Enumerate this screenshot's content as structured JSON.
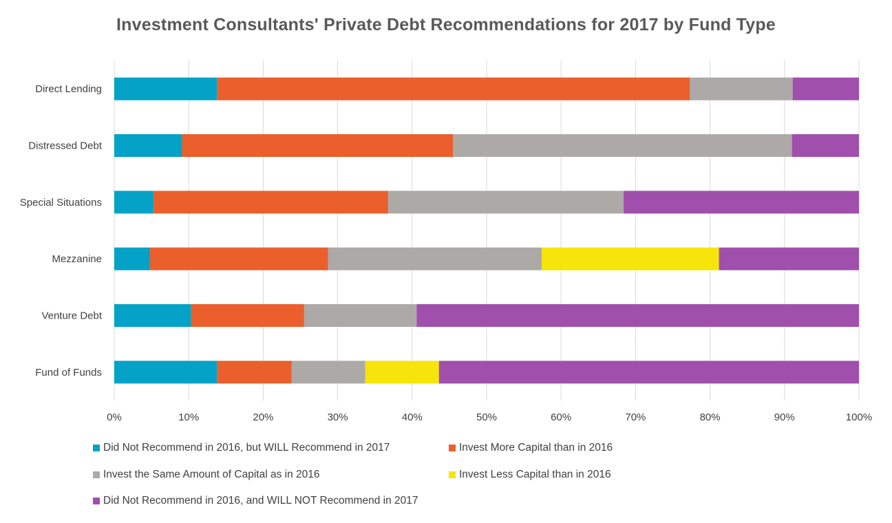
{
  "chart_data": {
    "type": "bar",
    "orientation": "horizontal",
    "stacked": "percent",
    "title": "Investment Consultants' Private Debt Recommendations for 2017 by Fund Type",
    "categories": [
      "Direct Lending",
      "Distressed Debt",
      "Special Situations",
      "Mezzanine",
      "Venture Debt",
      "Fund of Funds"
    ],
    "series": [
      {
        "name": "Did Not Recommend in 2016, but WILL Recommend in 2017",
        "color": "#03A2C6",
        "values": [
          13.8,
          9.1,
          5.3,
          4.8,
          10.3,
          13.8
        ]
      },
      {
        "name": "Invest More Capital than in 2016",
        "color": "#EA5F2B",
        "values": [
          63.5,
          36.4,
          31.5,
          23.9,
          15.2,
          10.0
        ]
      },
      {
        "name": "Invest the Same Amount of Capital as in 2016",
        "color": "#ADA9A7",
        "values": [
          13.8,
          45.5,
          31.6,
          28.7,
          15.1,
          9.9
        ]
      },
      {
        "name": "Invest Less Capital than in 2016",
        "color": "#F6E40A",
        "values": [
          0,
          0,
          0,
          23.8,
          0,
          9.9
        ]
      },
      {
        "name": "Did Not Recommend in 2016, and WILL NOT Recommend in 2017",
        "color": "#A04FAD",
        "values": [
          8.9,
          9.0,
          31.6,
          18.8,
          59.4,
          56.4
        ]
      }
    ],
    "xlim": [
      0,
      100
    ],
    "x_ticks": [
      "0%",
      "10%",
      "20%",
      "30%",
      "40%",
      "50%",
      "60%",
      "70%",
      "80%",
      "90%",
      "100%"
    ],
    "grid": true,
    "legend_position": "bottom"
  }
}
